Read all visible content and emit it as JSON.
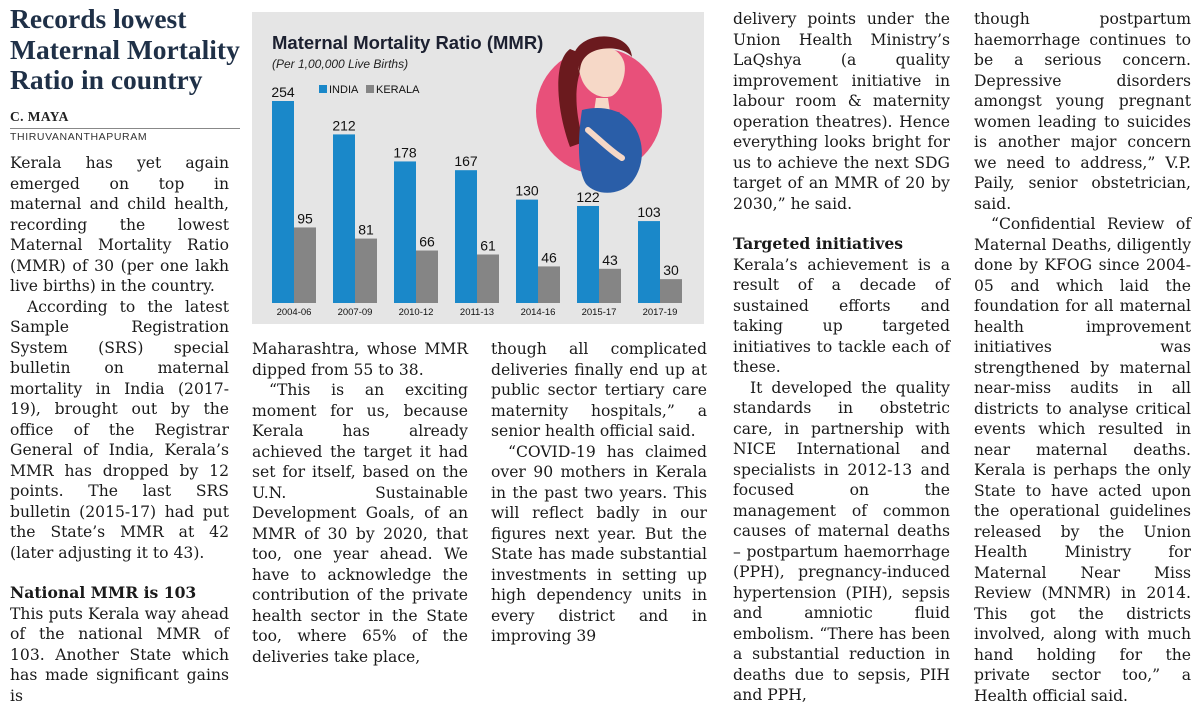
{
  "article": {
    "headline": "Records lowest Maternal Mortality Ratio in country",
    "author": "C. MAYA",
    "dateline": "THIRUVANANTHAPURAM",
    "col1": {
      "p1": "Kerala has yet again emerged on top in maternal and child health, recording the lowest Maternal Mortality Ratio (MMR) of 30 (per one lakh live births) in the country.",
      "p2": "According to the latest Sample Registration System (SRS) special bulletin on maternal mortality in India (2017-19), brought out by the office of the Registrar General of India, Kerala’s MMR has dropped by 12 points. The last SRS bulletin (2015-17) had put the State’s MMR at 42 (later adjusting it to 43).",
      "subhead": "National MMR is 103",
      "p3": "This puts Kerala way ahead of the national MMR of 103. Another State which has made significant gains is"
    },
    "col2": {
      "p1": "Maharashtra, whose MMR dipped from 55 to 38.",
      "p2": "“This is an exciting moment for us, because Kerala has already achieved the target it had set for itself, based on the U.N. Sustainable Development Goals, of an MMR of 30 by 2020, that too, one year ahead. We have to acknowledge the contribution of the private health sector in the State too, where 65% of the deliveries take place,"
    },
    "col3": {
      "p1": "though all complicated deliveries finally end up at public sector tertiary care maternity hospitals,” a senior health official said.",
      "p2": "“COVID-19 has claimed over 90 mothers in Kerala in the past two years. This will reflect badly in our figures next year. But the State has made substantial investments in setting up high dependency units in every district and in improving 39"
    },
    "col4": {
      "p1": "delivery points under the Union Health Ministry’s LaQshya (a quality improvement initiative in labour room & maternity operation theatres). Hence everything looks bright for us to achieve the next SDG target of an MMR of 20 by 2030,” he said.",
      "subhead": "Targeted initiatives",
      "p2": "Kerala’s achievement is a result of a decade of sustained efforts and taking up targeted initiatives to tackle each of these.",
      "p3": "It developed the quality standards in obstetric care, in partnership with NICE International and specialists in 2012-13 and focused on the management of common causes of maternal deaths – postpartum haemorrhage (PPH), pregnancy-induced hypertension (PIH), sepsis and amniotic fluid embolism. “There has been a substantial reduction in deaths due to sepsis, PIH and PPH,"
    },
    "col5": {
      "p1": "though postpartum haemorrhage continues to be a serious concern. Depressive disorders amongst young pregnant women leading to suicides is another major concern we need to address,” V.P. Paily, senior obstetrician, said.",
      "p2": "“Confidential Review of Maternal Deaths, diligently done by KFOG since 2004-05 and which laid the foundation for all maternal health improvement initiatives was strengthened by maternal near-miss audits in all districts to analyse critical events which resulted in near maternal deaths. Kerala is perhaps the only State to have acted upon the operational guidelines released by the Union Health Ministry for Maternal Near Miss Review (MNMR) in 2014. This got the districts involved, along with much hand holding for the private sector too,” a Health official said."
    }
  },
  "chart_data": {
    "type": "bar",
    "title": "Maternal Mortality Ratio (MMR)",
    "subtitle": "(Per 1,00,000 Live Births)",
    "categories": [
      "2004-06",
      "2007-09",
      "2010-12",
      "2011-13",
      "2014-16",
      "2015-17",
      "2017-19"
    ],
    "series": [
      {
        "name": "INDIA",
        "values": [
          254,
          212,
          178,
          167,
          130,
          122,
          103
        ],
        "color": "#1a88c9"
      },
      {
        "name": "KERALA",
        "values": [
          95,
          81,
          66,
          61,
          46,
          43,
          30
        ],
        "color": "#858585"
      }
    ],
    "ylim": [
      0,
      254
    ],
    "legend": "top-left",
    "grid": false,
    "illustration": "pregnant-woman-icon",
    "background": "#e5e5e5",
    "accent": "#e8507a"
  }
}
